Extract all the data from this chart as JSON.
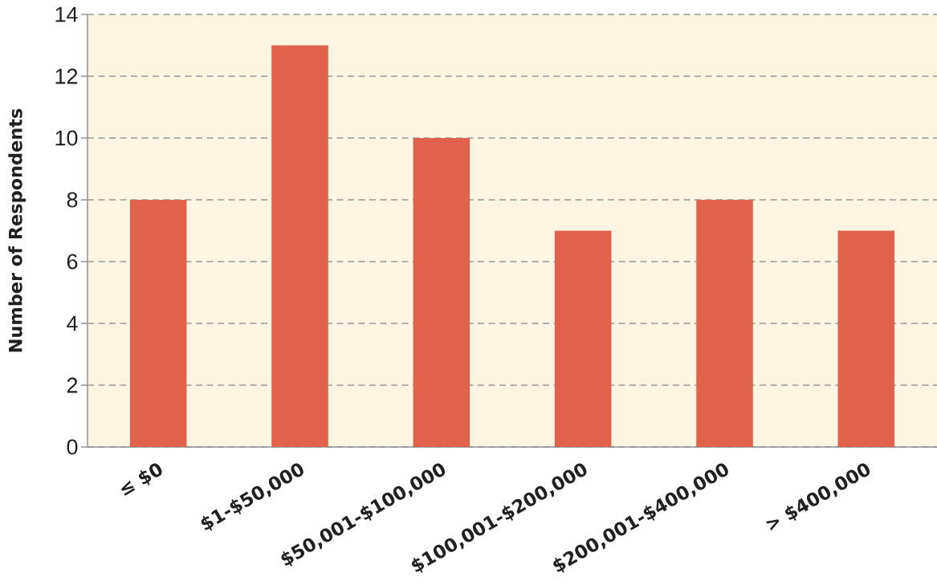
{
  "chart_data": {
    "type": "bar",
    "ylabel": "Number of Respondents",
    "categories": [
      "≤ $0",
      "$1-$50,000",
      "$50,001-$100,000",
      "$100,001-$200,000",
      "$200,001-$400,000",
      "> $400,000"
    ],
    "values": [
      8,
      13,
      10,
      7,
      8,
      7
    ],
    "color": "#e0624a",
    "ylim": [
      0,
      14
    ],
    "yticks": [
      0,
      2,
      4,
      6,
      8,
      10,
      12,
      14
    ],
    "grid": "y"
  }
}
